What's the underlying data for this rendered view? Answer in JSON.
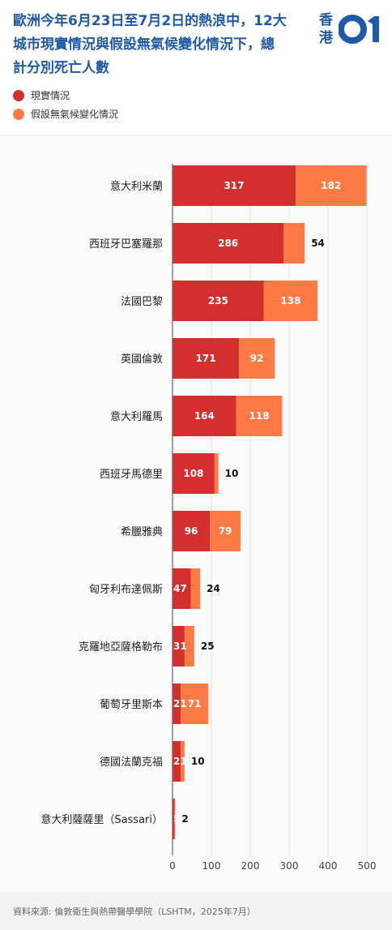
{
  "header": {
    "title_line1": "歐洲今年6月23日至7月2日的熱浪中，12大",
    "title_line2": "城市現實情況與假設無氣候變化情況下，總",
    "title_line3": "計分別死亡人數"
  },
  "logo": {
    "text_top": "香",
    "text_bottom": "港"
  },
  "legend": {
    "items": [
      {
        "label": "現實情況",
        "color": "#d32f2f"
      },
      {
        "label": "假設無氣候變化情況",
        "color": "#ff7a45"
      }
    ]
  },
  "chart_data": {
    "type": "bar",
    "orientation": "horizontal",
    "stacked": true,
    "categories": [
      "意大利米蘭",
      "西班牙巴塞羅那",
      "法國巴黎",
      "英國倫敦",
      "意大利羅馬",
      "西班牙馬德里",
      "希臘雅典",
      "匈牙利布達佩斯",
      "克羅地亞薩格勒布",
      "葡萄牙里斯本",
      "德國法蘭克福",
      "意大利薩薩里（Sassari）"
    ],
    "series": [
      {
        "name": "現實情況",
        "color": "#d32f2f",
        "values": [
          317,
          286,
          235,
          171,
          164,
          108,
          96,
          47,
          31,
          21,
          21,
          5
        ]
      },
      {
        "name": "假設無氣候變化情況",
        "color": "#ff7a45",
        "values": [
          182,
          54,
          138,
          92,
          118,
          10,
          79,
          24,
          25,
          71,
          10,
          2
        ]
      }
    ],
    "xlim": [
      0,
      500
    ],
    "xticks": [
      0,
      100,
      200,
      300,
      400,
      500
    ],
    "grid": true,
    "legend_position": "top-left"
  },
  "footer": {
    "source": "資料來源: 倫敦衛生與熱帶醫學學院（LSHTM，2025年7月）"
  }
}
